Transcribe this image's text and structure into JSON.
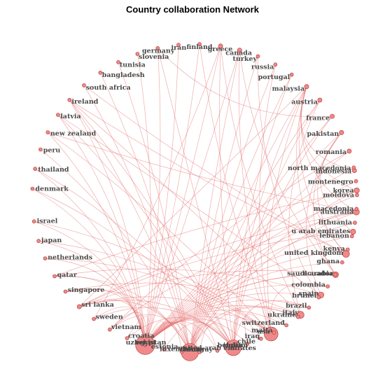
{
  "title": "Country collaboration Network",
  "colors": {
    "edge": "#e36a6a",
    "node_fill": "#f08a8a",
    "node_stroke": "#b03030",
    "label": "#4a4a4a"
  },
  "nodes": [
    {
      "name": "uzbekistan",
      "a": 1.88,
      "w": 10
    },
    {
      "name": "china",
      "a": 1.6,
      "w": 9
    },
    {
      "name": "india",
      "a": 1.33,
      "w": 8
    },
    {
      "name": "usa",
      "a": 1.08,
      "w": 7
    },
    {
      "name": "italy",
      "a": 0.86,
      "w": 3
    },
    {
      "name": "spain",
      "a": 0.68,
      "w": 2.5
    },
    {
      "name": "saudi arabia",
      "a": 0.52,
      "w": 2.5
    },
    {
      "name": "united kingdom",
      "a": 0.37,
      "w": 3
    },
    {
      "name": "u arab emirates",
      "a": 0.22,
      "w": 2
    },
    {
      "name": "australia",
      "a": 0.09,
      "w": 2.5
    },
    {
      "name": "korea",
      "a": -0.05,
      "w": 2
    },
    {
      "name": "indonesia",
      "a": -0.18,
      "w": 1.5
    },
    {
      "name": "romania",
      "a": -0.31,
      "w": 1.5
    },
    {
      "name": "pakistan",
      "a": -0.44,
      "w": 1.5
    },
    {
      "name": "france",
      "a": -0.56,
      "w": 1.5
    },
    {
      "name": "austria",
      "a": -0.69,
      "w": 1.5
    },
    {
      "name": "malaysia",
      "a": -0.81,
      "w": 1.5
    },
    {
      "name": "portugal",
      "a": -0.93,
      "w": 1
    },
    {
      "name": "russia",
      "a": -1.05,
      "w": 1
    },
    {
      "name": "turkey",
      "a": -1.17,
      "w": 1
    },
    {
      "name": "canada",
      "a": -1.29,
      "w": 1.5
    },
    {
      "name": "greece",
      "a": -1.41,
      "w": 1.5
    },
    {
      "name": "finland",
      "a": -1.54,
      "w": 1
    },
    {
      "name": "iran",
      "a": -1.67,
      "w": 1
    },
    {
      "name": "germany",
      "a": -1.8,
      "w": 1
    },
    {
      "name": "slovenia",
      "a": -1.93,
      "w": 1
    },
    {
      "name": "tunisia",
      "a": -2.06,
      "w": 1
    },
    {
      "name": "bangladesh",
      "a": -2.19,
      "w": 1
    },
    {
      "name": "south africa",
      "a": -2.32,
      "w": 1
    },
    {
      "name": "ireland",
      "a": -2.45,
      "w": 1
    },
    {
      "name": "latvia",
      "a": -2.57,
      "w": 1
    },
    {
      "name": "new zealand",
      "a": -2.7,
      "w": 1
    },
    {
      "name": "peru",
      "a": -2.82,
      "w": 1
    },
    {
      "name": "thailand",
      "a": -2.95,
      "w": 1
    },
    {
      "name": "denmark",
      "a": -3.08,
      "w": 1
    },
    {
      "name": "israel",
      "a": 2.99,
      "w": 1
    },
    {
      "name": "japan",
      "a": 2.86,
      "w": 1
    },
    {
      "name": "netherlands",
      "a": 2.74,
      "w": 1
    },
    {
      "name": "qatar",
      "a": 2.61,
      "w": 1
    },
    {
      "name": "singapore",
      "a": 2.49,
      "w": 1
    },
    {
      "name": "sri lanka",
      "a": 2.36,
      "w": 1.5
    },
    {
      "name": "sweden",
      "a": 2.24,
      "w": 1
    },
    {
      "name": "vietnam",
      "a": 2.12,
      "w": 1
    },
    {
      "name": "croatia",
      "a": 2.0,
      "w": 1
    },
    {
      "name": "egypt",
      "a": 1.88,
      "w": 1
    },
    {
      "name": "estonia",
      "a": 1.76,
      "w": 1
    },
    {
      "name": "luxembourg",
      "a": 1.65,
      "w": 1
    },
    {
      "name": "norway",
      "a": 1.54,
      "w": 1
    },
    {
      "name": "united arab emirates",
      "a": 1.43,
      "w": 1
    },
    {
      "name": "belgium",
      "a": 1.33,
      "w": 1
    },
    {
      "name": "chile",
      "a": 1.24,
      "w": 1
    },
    {
      "name": "iraq",
      "a": 1.15,
      "w": 1
    },
    {
      "name": "malta",
      "a": 1.06,
      "w": 1
    },
    {
      "name": "switzerland",
      "a": 0.97,
      "w": 1
    },
    {
      "name": "ukraine",
      "a": 0.88,
      "w": 1
    },
    {
      "name": "brazil",
      "a": 0.79,
      "w": 1
    },
    {
      "name": "brunei",
      "a": 0.7,
      "w": 1
    },
    {
      "name": "colombia",
      "a": 0.61,
      "w": 1
    },
    {
      "name": "ecuador",
      "a": 0.52,
      "w": 1
    },
    {
      "name": "ghana",
      "a": 0.43,
      "w": 1
    },
    {
      "name": "kenya",
      "a": 0.34,
      "w": 1
    },
    {
      "name": "lebanon",
      "a": 0.25,
      "w": 1
    },
    {
      "name": "lithuania",
      "a": 0.16,
      "w": 1
    },
    {
      "name": "macedonia",
      "a": 0.07,
      "w": 1
    },
    {
      "name": "moldova",
      "a": -0.02,
      "w": 1
    },
    {
      "name": "montenegro",
      "a": -0.11,
      "w": 1
    },
    {
      "name": "north macedonia",
      "a": -0.2,
      "w": 1
    }
  ],
  "edges": [
    [
      "uzbekistan",
      "canada"
    ],
    [
      "uzbekistan",
      "greece"
    ],
    [
      "uzbekistan",
      "finland"
    ],
    [
      "uzbekistan",
      "iran"
    ],
    [
      "uzbekistan",
      "germany"
    ],
    [
      "uzbekistan",
      "slovenia"
    ],
    [
      "uzbekistan",
      "ireland"
    ],
    [
      "uzbekistan",
      "latvia"
    ],
    [
      "uzbekistan",
      "new zealand"
    ],
    [
      "uzbekistan",
      "thailand"
    ],
    [
      "uzbekistan",
      "denmark"
    ],
    [
      "uzbekistan",
      "israel"
    ],
    [
      "uzbekistan",
      "japan"
    ],
    [
      "uzbekistan",
      "netherlands"
    ],
    [
      "uzbekistan",
      "qatar"
    ],
    [
      "uzbekistan",
      "singapore"
    ],
    [
      "uzbekistan",
      "sri lanka"
    ],
    [
      "uzbekistan",
      "sweden"
    ],
    [
      "uzbekistan",
      "vietnam"
    ],
    [
      "uzbekistan",
      "croatia"
    ],
    [
      "uzbekistan",
      "egypt"
    ],
    [
      "uzbekistan",
      "estonia"
    ],
    [
      "uzbekistan",
      "luxembourg"
    ],
    [
      "uzbekistan",
      "norway"
    ],
    [
      "uzbekistan",
      "united arab emirates"
    ],
    [
      "uzbekistan",
      "belgium"
    ],
    [
      "uzbekistan",
      "chile"
    ],
    [
      "uzbekistan",
      "iraq"
    ],
    [
      "uzbekistan",
      "malta"
    ],
    [
      "uzbekistan",
      "switzerland"
    ],
    [
      "uzbekistan",
      "ukraine"
    ],
    [
      "uzbekistan",
      "brazil"
    ],
    [
      "uzbekistan",
      "brunei"
    ],
    [
      "uzbekistan",
      "colombia"
    ],
    [
      "uzbekistan",
      "ecuador"
    ],
    [
      "uzbekistan",
      "ghana"
    ],
    [
      "uzbekistan",
      "kenya"
    ],
    [
      "uzbekistan",
      "lebanon"
    ],
    [
      "uzbekistan",
      "lithuania"
    ],
    [
      "uzbekistan",
      "macedonia"
    ],
    [
      "uzbekistan",
      "moldova"
    ],
    [
      "uzbekistan",
      "montenegro"
    ],
    [
      "uzbekistan",
      "north macedonia"
    ],
    [
      "china",
      "canada"
    ],
    [
      "china",
      "portugal"
    ],
    [
      "china",
      "russia"
    ],
    [
      "china",
      "turkey"
    ],
    [
      "china",
      "malaysia"
    ],
    [
      "china",
      "austria"
    ],
    [
      "china",
      "france"
    ],
    [
      "china",
      "pakistan"
    ],
    [
      "china",
      "romania"
    ],
    [
      "china",
      "korea"
    ],
    [
      "china",
      "australia"
    ],
    [
      "china",
      "ireland"
    ],
    [
      "china",
      "south africa"
    ],
    [
      "china",
      "bangladesh"
    ],
    [
      "china",
      "tunisia"
    ],
    [
      "china",
      "peru"
    ],
    [
      "china",
      "sri lanka"
    ],
    [
      "china",
      "qatar"
    ],
    [
      "china",
      "singapore"
    ],
    [
      "china",
      "vietnam"
    ],
    [
      "china",
      "egypt"
    ],
    [
      "china",
      "united arab emirates"
    ],
    [
      "china",
      "ukraine"
    ],
    [
      "india",
      "greece"
    ],
    [
      "india",
      "portugal"
    ],
    [
      "india",
      "malaysia"
    ],
    [
      "india",
      "austria"
    ],
    [
      "india",
      "france"
    ],
    [
      "india",
      "germany"
    ],
    [
      "india",
      "latvia"
    ],
    [
      "india",
      "ireland"
    ],
    [
      "india",
      "thailand"
    ],
    [
      "india",
      "denmark"
    ],
    [
      "india",
      "sri lanka"
    ],
    [
      "india",
      "sweden"
    ],
    [
      "india",
      "croatia"
    ],
    [
      "india",
      "estonia"
    ],
    [
      "india",
      "norway"
    ],
    [
      "india",
      "belgium"
    ],
    [
      "india",
      "iraq"
    ],
    [
      "india",
      "brazil"
    ],
    [
      "usa",
      "canada"
    ],
    [
      "usa",
      "malaysia"
    ],
    [
      "usa",
      "russia"
    ],
    [
      "usa",
      "finland"
    ],
    [
      "usa",
      "new zealand"
    ],
    [
      "usa",
      "israel"
    ],
    [
      "usa",
      "japan"
    ],
    [
      "usa",
      "netherlands"
    ],
    [
      "usa",
      "sri lanka"
    ],
    [
      "usa",
      "chile"
    ],
    [
      "usa",
      "switzerland"
    ],
    [
      "usa",
      "colombia"
    ],
    [
      "italy",
      "greece"
    ],
    [
      "italy",
      "austria"
    ],
    [
      "italy",
      "ireland"
    ],
    [
      "italy",
      "singapore"
    ],
    [
      "italy",
      "luxembourg"
    ],
    [
      "spain",
      "pakistan"
    ],
    [
      "spain",
      "latvia"
    ],
    [
      "spain",
      "qatar"
    ],
    [
      "saudi arabia",
      "pakistan"
    ],
    [
      "saudi arabia",
      "malaysia"
    ],
    [
      "saudi arabia",
      "egypt"
    ],
    [
      "saudi arabia",
      "sri lanka"
    ],
    [
      "united kingdom",
      "pakistan"
    ],
    [
      "united kingdom",
      "malaysia"
    ],
    [
      "united kingdom",
      "ireland"
    ],
    [
      "united kingdom",
      "south africa"
    ],
    [
      "u arab emirates",
      "pakistan"
    ],
    [
      "u arab emirates",
      "sri lanka"
    ],
    [
      "australia",
      "malaysia"
    ],
    [
      "australia",
      "sri lanka"
    ],
    [
      "australia",
      "new zealand"
    ],
    [
      "australia",
      "vietnam"
    ],
    [
      "korea",
      "malaysia"
    ],
    [
      "korea",
      "qatar"
    ],
    [
      "indonesia",
      "malaysia"
    ],
    [
      "romania",
      "vietnam"
    ],
    [
      "france",
      "germany"
    ],
    [
      "malaysia",
      "sri lanka"
    ],
    [
      "canada",
      "ecuador"
    ],
    [
      "greece",
      "sweden"
    ],
    [
      "turkey",
      "brunei"
    ]
  ]
}
